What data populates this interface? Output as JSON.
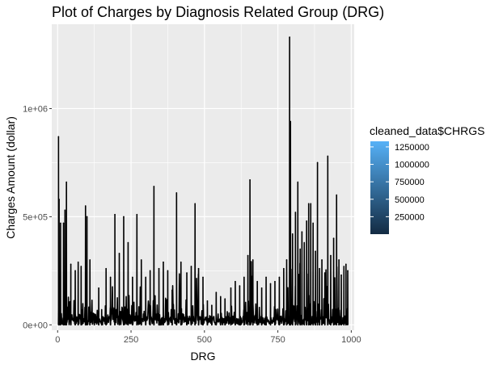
{
  "chart_data": {
    "type": "line",
    "title": "Plot of Charges by Diagnosis Related Group (DRG)",
    "xlabel": "DRG",
    "ylabel": "Charges Amount (dollar)",
    "xlim": [
      -20,
      1010
    ],
    "ylim": [
      -25000,
      1390000
    ],
    "x_ticks": [
      0,
      250,
      500,
      750,
      1000
    ],
    "x_tick_labels": [
      "0",
      "250",
      "500",
      "750",
      "1000"
    ],
    "y_ticks": [
      0,
      500000,
      1000000
    ],
    "y_tick_labels": [
      "0e+00",
      "5e+05",
      "1e+06"
    ],
    "grid": true,
    "line_color": "#000000",
    "panel_background": "#ebebeb",
    "grid_color": "#ffffff",
    "peaks": [
      {
        "x": 3,
        "y": 870000
      },
      {
        "x": 5,
        "y": 580000
      },
      {
        "x": 10,
        "y": 470000
      },
      {
        "x": 20,
        "y": 470000
      },
      {
        "x": 25,
        "y": 530000
      },
      {
        "x": 30,
        "y": 660000
      },
      {
        "x": 45,
        "y": 280000
      },
      {
        "x": 60,
        "y": 250000
      },
      {
        "x": 70,
        "y": 290000
      },
      {
        "x": 80,
        "y": 270000
      },
      {
        "x": 95,
        "y": 550000
      },
      {
        "x": 100,
        "y": 500000
      },
      {
        "x": 110,
        "y": 300000
      },
      {
        "x": 125,
        "y": 50000
      },
      {
        "x": 140,
        "y": 170000
      },
      {
        "x": 150,
        "y": 70000
      },
      {
        "x": 165,
        "y": 260000
      },
      {
        "x": 180,
        "y": 220000
      },
      {
        "x": 195,
        "y": 510000
      },
      {
        "x": 210,
        "y": 330000
      },
      {
        "x": 225,
        "y": 500000
      },
      {
        "x": 240,
        "y": 380000
      },
      {
        "x": 255,
        "y": 220000
      },
      {
        "x": 270,
        "y": 510000
      },
      {
        "x": 285,
        "y": 300000
      },
      {
        "x": 300,
        "y": 220000
      },
      {
        "x": 315,
        "y": 250000
      },
      {
        "x": 328,
        "y": 640000
      },
      {
        "x": 345,
        "y": 260000
      },
      {
        "x": 360,
        "y": 290000
      },
      {
        "x": 375,
        "y": 250000
      },
      {
        "x": 390,
        "y": 160000
      },
      {
        "x": 405,
        "y": 610000
      },
      {
        "x": 420,
        "y": 290000
      },
      {
        "x": 440,
        "y": 240000
      },
      {
        "x": 455,
        "y": 270000
      },
      {
        "x": 468,
        "y": 560000
      },
      {
        "x": 480,
        "y": 260000
      },
      {
        "x": 495,
        "y": 220000
      },
      {
        "x": 510,
        "y": 110000
      },
      {
        "x": 525,
        "y": 90000
      },
      {
        "x": 540,
        "y": 150000
      },
      {
        "x": 555,
        "y": 130000
      },
      {
        "x": 570,
        "y": 120000
      },
      {
        "x": 590,
        "y": 170000
      },
      {
        "x": 605,
        "y": 200000
      },
      {
        "x": 620,
        "y": 180000
      },
      {
        "x": 635,
        "y": 220000
      },
      {
        "x": 648,
        "y": 320000
      },
      {
        "x": 655,
        "y": 670000
      },
      {
        "x": 665,
        "y": 300000
      },
      {
        "x": 680,
        "y": 200000
      },
      {
        "x": 695,
        "y": 170000
      },
      {
        "x": 710,
        "y": 220000
      },
      {
        "x": 725,
        "y": 190000
      },
      {
        "x": 740,
        "y": 200000
      },
      {
        "x": 755,
        "y": 220000
      },
      {
        "x": 770,
        "y": 260000
      },
      {
        "x": 780,
        "y": 300000
      },
      {
        "x": 790,
        "y": 1330000
      },
      {
        "x": 793,
        "y": 940000
      },
      {
        "x": 800,
        "y": 420000
      },
      {
        "x": 810,
        "y": 520000
      },
      {
        "x": 818,
        "y": 660000
      },
      {
        "x": 826,
        "y": 350000
      },
      {
        "x": 832,
        "y": 430000
      },
      {
        "x": 840,
        "y": 380000
      },
      {
        "x": 848,
        "y": 480000
      },
      {
        "x": 855,
        "y": 560000
      },
      {
        "x": 862,
        "y": 560000
      },
      {
        "x": 870,
        "y": 470000
      },
      {
        "x": 878,
        "y": 340000
      },
      {
        "x": 885,
        "y": 750000
      },
      {
        "x": 892,
        "y": 260000
      },
      {
        "x": 900,
        "y": 300000
      },
      {
        "x": 910,
        "y": 240000
      },
      {
        "x": 920,
        "y": 780000
      },
      {
        "x": 930,
        "y": 320000
      },
      {
        "x": 940,
        "y": 400000
      },
      {
        "x": 950,
        "y": 600000
      },
      {
        "x": 958,
        "y": 300000
      },
      {
        "x": 966,
        "y": 230000
      },
      {
        "x": 975,
        "y": 270000
      },
      {
        "x": 982,
        "y": 280000
      },
      {
        "x": 988,
        "y": 250000
      }
    ]
  },
  "legend": {
    "title": "cleaned_data$CHRGS",
    "labels": [
      "1250000",
      "1000000",
      "750000",
      "500000",
      "250000"
    ],
    "values": [
      1250000,
      1000000,
      750000,
      500000,
      250000
    ],
    "range": [
      0,
      1330000
    ],
    "color_low": "#132b43",
    "color_high": "#56b1f7"
  }
}
